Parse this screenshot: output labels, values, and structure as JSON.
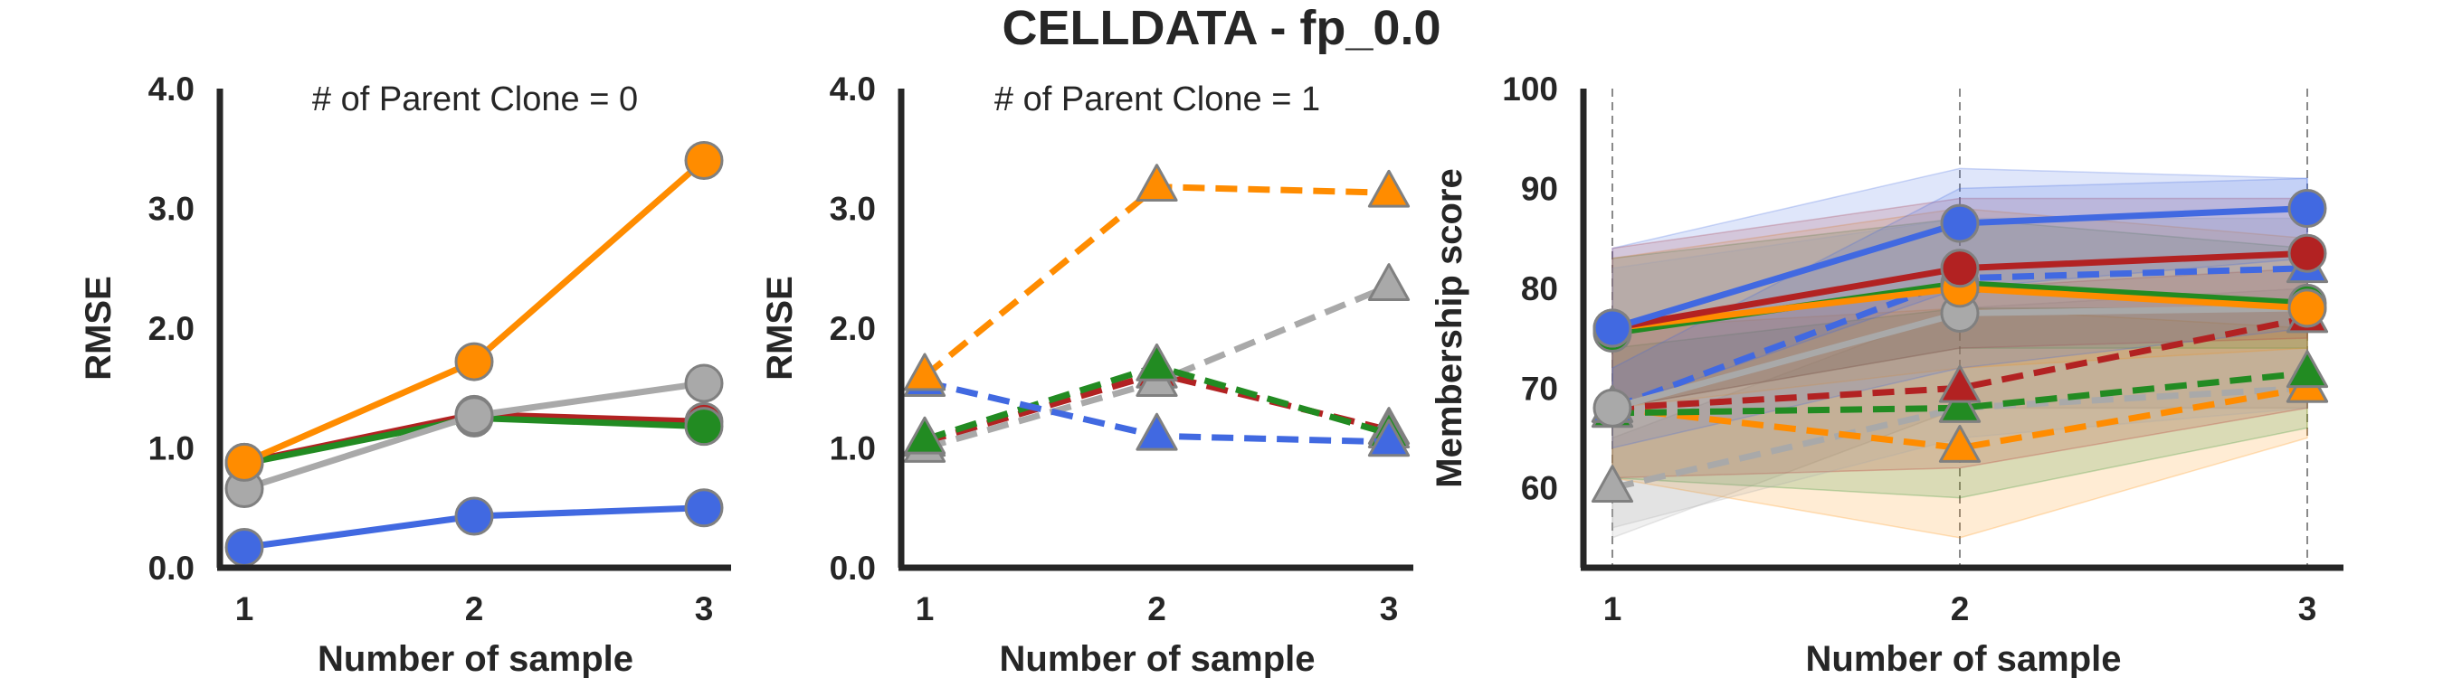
{
  "figure_title": "CELLDATA - fp_0.0",
  "colors": {
    "blue": "#4169e1",
    "red": "#b22222",
    "green": "#228b22",
    "orange": "#ff8c00",
    "gray": "#a9a9a9",
    "axis": "#262626",
    "marker_edge": "#808080"
  },
  "chart_data": [
    {
      "type": "line",
      "title": "# of Parent Clone = 0",
      "xlabel": "Number of sample",
      "ylabel": "RMSE",
      "x": [
        1,
        2,
        3
      ],
      "xticks": [
        "1",
        "2",
        "3"
      ],
      "ylim": [
        0,
        4
      ],
      "yticks": [
        "0.0",
        "1.0",
        "2.0",
        "3.0",
        "4.0"
      ],
      "grid": false,
      "marker": "circle",
      "dashed": false,
      "series": [
        {
          "color": "red",
          "values": [
            0.88,
            1.28,
            1.22
          ]
        },
        {
          "color": "green",
          "values": [
            0.87,
            1.25,
            1.18
          ]
        },
        {
          "color": "gray",
          "values": [
            0.66,
            1.27,
            1.54
          ]
        },
        {
          "color": "blue",
          "values": [
            0.17,
            0.43,
            0.5
          ]
        },
        {
          "color": "orange",
          "values": [
            0.88,
            1.72,
            3.4
          ]
        }
      ]
    },
    {
      "type": "line",
      "title": "# of Parent Clone = 1",
      "xlabel": "Number of sample",
      "ylabel": "RMSE",
      "x": [
        1,
        2,
        3
      ],
      "xticks": [
        "1",
        "2",
        "3"
      ],
      "ylim": [
        0,
        4
      ],
      "yticks": [
        "0.0",
        "1.0",
        "2.0",
        "3.0",
        "4.0"
      ],
      "grid": false,
      "marker": "triangle",
      "dashed": true,
      "series": [
        {
          "color": "red",
          "values": [
            1.05,
            1.62,
            1.15
          ]
        },
        {
          "color": "gray",
          "values": [
            1.0,
            1.55,
            2.35
          ]
        },
        {
          "color": "green",
          "values": [
            1.07,
            1.68,
            1.12
          ]
        },
        {
          "color": "blue",
          "values": [
            1.55,
            1.1,
            1.05
          ]
        },
        {
          "color": "orange",
          "values": [
            1.6,
            3.18,
            3.13
          ]
        }
      ]
    },
    {
      "type": "line",
      "title": "",
      "xlabel": "Number of sample",
      "ylabel": "Membership score",
      "x": [
        1,
        2,
        3
      ],
      "xticks": [
        "1",
        "2",
        "3"
      ],
      "ylim": [
        52,
        100
      ],
      "yticks": [
        "60",
        "70",
        "80",
        "90",
        "100"
      ],
      "grid": "vertical dashed",
      "bands": [
        {
          "color": "gray",
          "lower": [
            55,
            68,
            68
          ],
          "upper": [
            65,
            78,
            80
          ]
        },
        {
          "color": "orange",
          "lower": [
            61,
            55,
            65
          ],
          "upper": [
            76,
            78,
            76
          ]
        },
        {
          "color": "green",
          "lower": [
            61,
            59,
            66
          ],
          "upper": [
            74,
            78,
            78
          ]
        },
        {
          "color": "red",
          "lower": [
            61,
            62,
            68
          ],
          "upper": [
            76,
            80,
            82
          ]
        },
        {
          "color": "green",
          "lower": [
            68,
            74,
            74
          ],
          "upper": [
            83,
            87,
            84
          ]
        },
        {
          "color": "orange",
          "lower": [
            68,
            72,
            74
          ],
          "upper": [
            83,
            88,
            85
          ]
        },
        {
          "color": "red",
          "lower": [
            68,
            74,
            75
          ],
          "upper": [
            84,
            89,
            89
          ]
        },
        {
          "color": "gray",
          "lower": [
            56,
            65,
            68
          ],
          "upper": [
            82,
            87,
            87
          ]
        },
        {
          "color": "blue",
          "lower": [
            64,
            72,
            76
          ],
          "upper": [
            72,
            90,
            91
          ]
        },
        {
          "color": "blue",
          "lower": [
            68,
            80,
            83
          ],
          "upper": [
            84,
            92,
            91
          ]
        }
      ],
      "series": [
        {
          "color": "gray",
          "dashed": true,
          "marker": "triangle",
          "values": [
            60,
            68,
            70
          ]
        },
        {
          "color": "orange",
          "dashed": true,
          "marker": "triangle",
          "values": [
            68,
            64,
            70
          ]
        },
        {
          "color": "green",
          "dashed": true,
          "marker": "triangle",
          "values": [
            67.5,
            68,
            71.5
          ]
        },
        {
          "color": "red",
          "dashed": true,
          "marker": "triangle",
          "values": [
            68,
            70,
            77
          ]
        },
        {
          "color": "blue",
          "dashed": true,
          "marker": "triangle",
          "values": [
            68,
            81,
            82
          ]
        },
        {
          "color": "gray",
          "dashed": false,
          "marker": "circle",
          "values": [
            68,
            77.5,
            78
          ]
        },
        {
          "color": "green",
          "dashed": false,
          "marker": "circle",
          "values": [
            75.5,
            80.5,
            78.5
          ]
        },
        {
          "color": "orange",
          "dashed": false,
          "marker": "circle",
          "values": [
            76,
            80,
            78
          ]
        },
        {
          "color": "red",
          "dashed": false,
          "marker": "circle",
          "values": [
            76,
            82,
            83.5
          ]
        },
        {
          "color": "blue",
          "dashed": false,
          "marker": "circle",
          "values": [
            76,
            86.5,
            88
          ]
        }
      ]
    }
  ]
}
